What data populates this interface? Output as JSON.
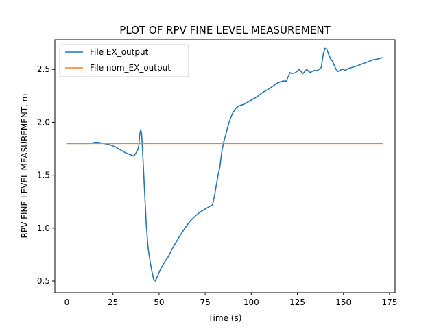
{
  "chart_data": {
    "type": "line",
    "title": "PLOT OF RPV FINE LEVEL MEASUREMENT",
    "xlabel": "Time (s)",
    "ylabel": "RPV FINE LEVEL MEASUREMENT, m",
    "xlim": [
      -6.5,
      178
    ],
    "ylim": [
      0.39,
      2.78
    ],
    "xticks": [
      0,
      25,
      50,
      75,
      100,
      125,
      150,
      175
    ],
    "yticks": [
      0.5,
      1.0,
      1.5,
      2.0,
      2.5
    ],
    "ytick_labels": [
      "0.5",
      "1.0",
      "1.5",
      "2.0",
      "2.5"
    ],
    "grid": false,
    "legend": "upper-left",
    "series": [
      {
        "name": "File EX_output",
        "color": "#1f77b4",
        "x": [
          0,
          5,
          10,
          13,
          15,
          17,
          20,
          23,
          26,
          29,
          32,
          35,
          36.5,
          37,
          37.5,
          38,
          38.5,
          39,
          39.5,
          40,
          40.5,
          41,
          42,
          43,
          44,
          45,
          46,
          47,
          48,
          49,
          50,
          51,
          52,
          53,
          55,
          57,
          59,
          61,
          64,
          67,
          70,
          73,
          76,
          79,
          80,
          81,
          82,
          83,
          84,
          85,
          86,
          87,
          88,
          89,
          90,
          92,
          94,
          96,
          98,
          100,
          103,
          106,
          110,
          114,
          117,
          119,
          121,
          122,
          124,
          126,
          127,
          128,
          130,
          132,
          134,
          136,
          138,
          139,
          140,
          141,
          142,
          143,
          144,
          145,
          146,
          147,
          148,
          149,
          150,
          151,
          152,
          153,
          155,
          157,
          160,
          163,
          166,
          169,
          171
        ],
        "y": [
          1.8,
          1.8,
          1.8,
          1.8,
          1.81,
          1.81,
          1.8,
          1.79,
          1.77,
          1.74,
          1.71,
          1.69,
          1.68,
          1.7,
          1.71,
          1.73,
          1.74,
          1.78,
          1.88,
          1.93,
          1.9,
          1.75,
          1.4,
          1.05,
          0.82,
          0.7,
          0.6,
          0.52,
          0.5,
          0.54,
          0.58,
          0.62,
          0.65,
          0.68,
          0.73,
          0.8,
          0.86,
          0.92,
          1.0,
          1.07,
          1.12,
          1.16,
          1.19,
          1.22,
          1.3,
          1.4,
          1.5,
          1.58,
          1.72,
          1.81,
          1.87,
          1.94,
          2.0,
          2.05,
          2.09,
          2.14,
          2.16,
          2.17,
          2.19,
          2.21,
          2.24,
          2.28,
          2.32,
          2.37,
          2.39,
          2.39,
          2.47,
          2.46,
          2.47,
          2.5,
          2.48,
          2.46,
          2.5,
          2.47,
          2.49,
          2.49,
          2.52,
          2.64,
          2.7,
          2.69,
          2.64,
          2.6,
          2.58,
          2.54,
          2.5,
          2.48,
          2.49,
          2.5,
          2.5,
          2.49,
          2.5,
          2.51,
          2.52,
          2.53,
          2.55,
          2.57,
          2.59,
          2.6,
          2.61
        ]
      },
      {
        "name": "File nom_EX_output",
        "color": "#ff7f0e",
        "x": [
          0,
          171
        ],
        "y": [
          1.8,
          1.8
        ]
      }
    ]
  }
}
